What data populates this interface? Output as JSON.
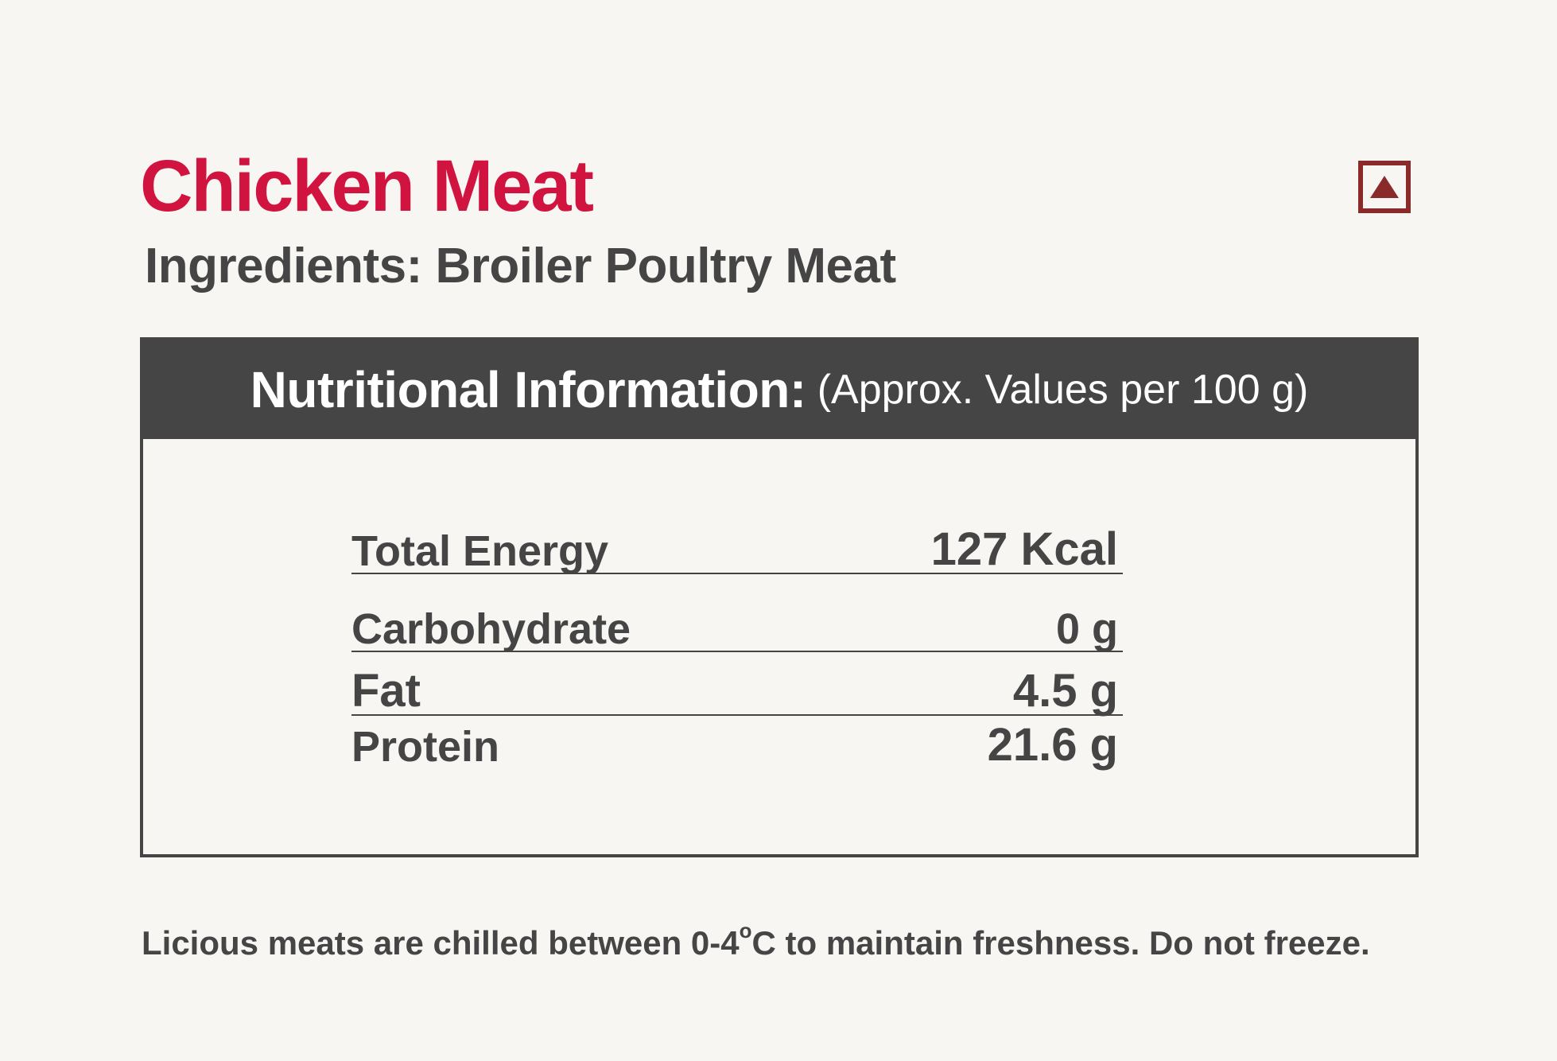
{
  "title": "Chicken Meat",
  "ingredients": "Ingredients: Broiler Poultry Meat",
  "veg_mark": {
    "icon": "non-veg-triangle-icon",
    "border_color": "#8b2a2a",
    "fill_color": "#8b2a2a"
  },
  "nutrition": {
    "heading": "Nutritional Information:",
    "subheading": "(Approx. Values per 100 g)",
    "rows": [
      {
        "label": "Total Energy",
        "value": "127 Kcal"
      },
      {
        "label": "Carbohydrate",
        "value": "0 g"
      },
      {
        "label": "Fat",
        "value": "4.5 g"
      },
      {
        "label": "Protein",
        "value": "21.6 g"
      }
    ]
  },
  "footer": {
    "before": "Licious meats are chilled between 0-4",
    "degree": "o",
    "after": "C to maintain freshness. Do not freeze."
  },
  "colors": {
    "title": "#d0143f",
    "text": "#454545",
    "background": "#f8f6f2",
    "header_bg": "#454545"
  }
}
